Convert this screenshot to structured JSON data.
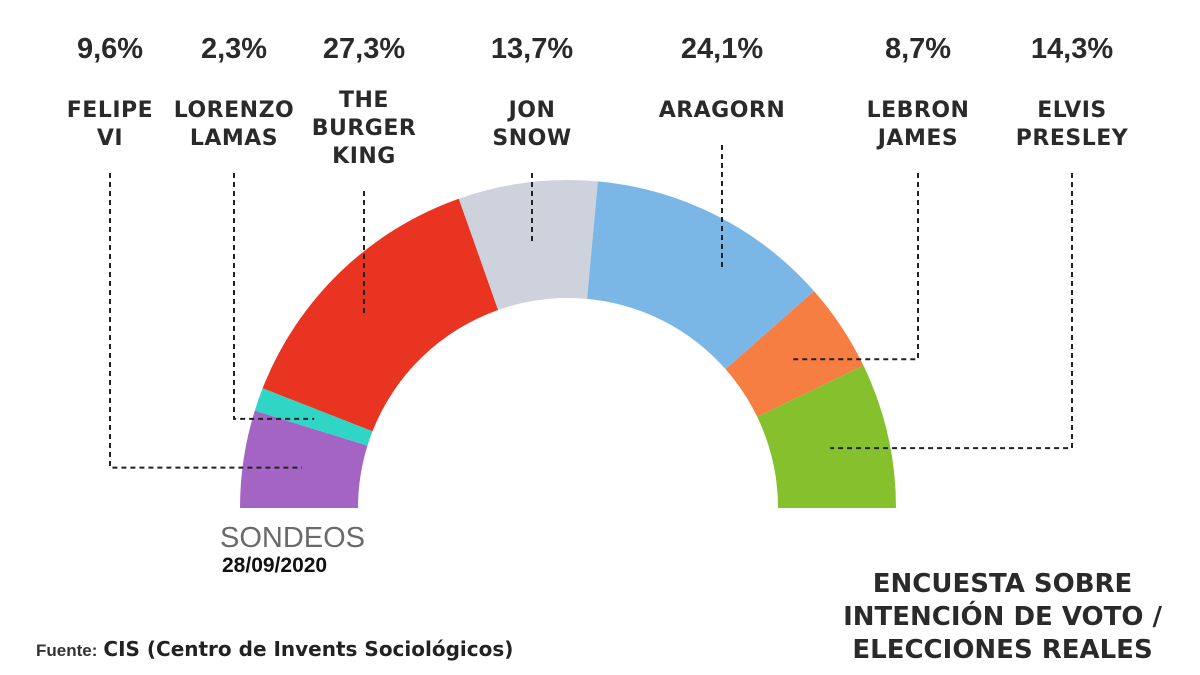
{
  "chart_data": {
    "type": "pie",
    "subtype": "semicircle-parliament",
    "title": "ENCUESTA SOBRE INTENCIÓN DE VOTO / ELECCIONES REALES",
    "categories": [
      "FELIPE VI",
      "LORENZO LAMAS",
      "THE BURGER KING",
      "JON SNOW",
      "ARAGORN",
      "LEBRON JAMES",
      "ELVIS PRESLEY"
    ],
    "values": [
      9.6,
      2.3,
      27.3,
      13.7,
      24.1,
      8.7,
      14.3
    ],
    "value_labels": [
      "9,6%",
      "2,3%",
      "27,3%",
      "13,7%",
      "24,1%",
      "8,7%",
      "14,3%"
    ],
    "name_lines": [
      [
        "FELIPE",
        "VI"
      ],
      [
        "LORENZO",
        "LAMAS"
      ],
      [
        "THE",
        "BURGER",
        "KING"
      ],
      [
        "JON",
        "SNOW"
      ],
      [
        "ARAGORN"
      ],
      [
        "LEBRON",
        "JAMES"
      ],
      [
        "ELVIS",
        "PRESLEY"
      ]
    ],
    "colors": [
      "#a464c4",
      "#2fd6c6",
      "#e83420",
      "#cdd2dc",
      "#7ab7e7",
      "#f77e43",
      "#84c12d"
    ]
  },
  "labels": {
    "sondeos": "SONDEOS",
    "date": "28/09/2020",
    "source_label": "Fuente:",
    "source_value": "CIS (Centro de Invents Sociológicos)",
    "caption_lines": [
      "ENCUESTA SOBRE",
      "INTENCIÓN DE VOTO /",
      "ELECCIONES REALES"
    ]
  }
}
